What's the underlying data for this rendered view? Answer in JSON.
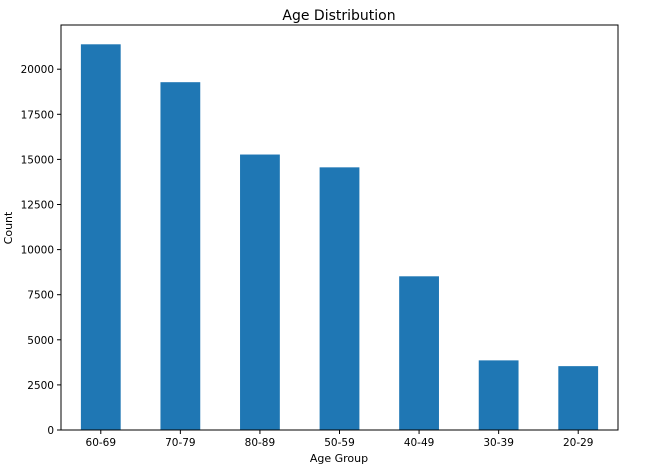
{
  "chart_data": {
    "type": "bar",
    "title": "Age Distribution",
    "xlabel": "Age Group",
    "ylabel": "Count",
    "categories": [
      "60-69",
      "70-79",
      "80-89",
      "50-59",
      "40-49",
      "30-39",
      "20-29"
    ],
    "values": [
      21380,
      19280,
      15270,
      14560,
      8520,
      3860,
      3540
    ],
    "ylim": [
      0,
      22450
    ],
    "yticks": [
      0,
      2500,
      5000,
      7500,
      10000,
      12500,
      15000,
      17500,
      20000
    ],
    "ytick_labels": [
      "0",
      "2500",
      "5000",
      "7500",
      "10000",
      "12500",
      "15000",
      "17500",
      "20000"
    ],
    "bar_color": "#1f77b4",
    "grid": false,
    "legend": "none"
  }
}
